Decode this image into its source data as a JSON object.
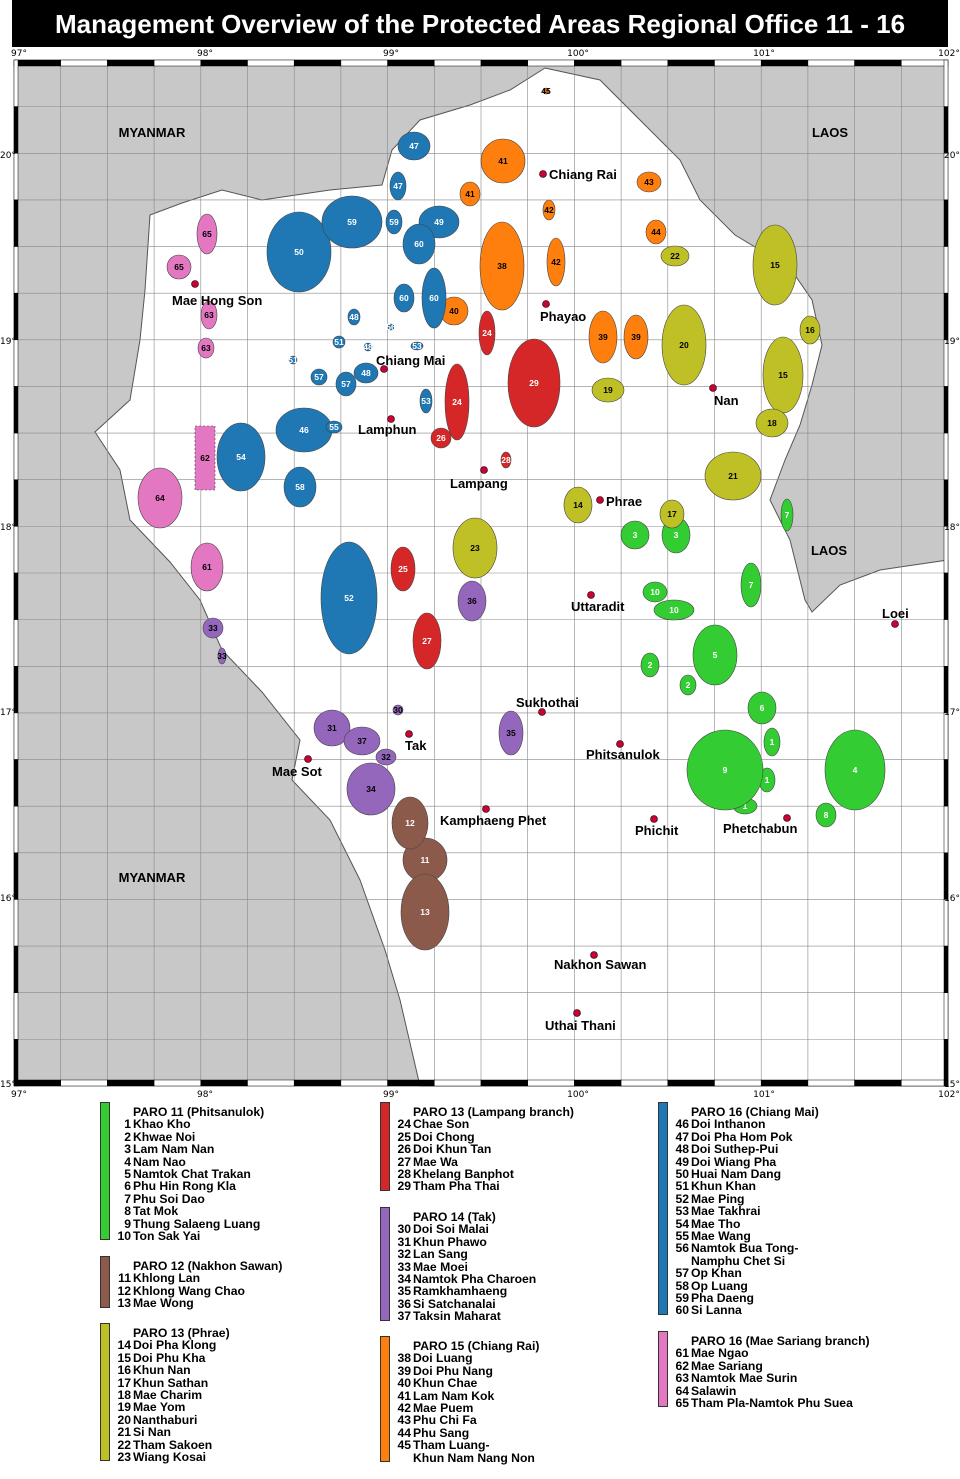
{
  "title": "Management Overview of the Protected Areas Regional Office 11 - 16",
  "map": {
    "lon_labels": [
      "97°",
      "98°",
      "99°",
      "100°",
      "101°",
      "102°"
    ],
    "lat_labels": [
      "20°",
      "19°",
      "18°",
      "17°",
      "16°",
      "15°"
    ],
    "countries": [
      "MYANMAR",
      "LAOS",
      "LAOS",
      "MYANMAR"
    ],
    "cities": [
      "Chiang Rai",
      "Phayao",
      "Mae Hong Son",
      "Chiang Mai",
      "Lamphun",
      "Lampang",
      "Nan",
      "Phrae",
      "Uttaradit",
      "Loei",
      "Sukhothai",
      "Tak",
      "Mae Sot",
      "Phitsanulok",
      "Kamphaeng Phet",
      "Phichit",
      "Phetchabun",
      "Nakhon Sawan",
      "Uthai Thani"
    ],
    "colors": {
      "land_foreign": "#c8c8c8",
      "land_thailand": "#ffffff",
      "city_dot": "#cc0033",
      "grid": "#888888"
    }
  },
  "legend": [
    {
      "name": "PARO 11 (Phitsanulok)",
      "color": "#33cc33",
      "items": [
        [
          "1",
          "Khao Kho"
        ],
        [
          "2",
          "Khwae Noi"
        ],
        [
          "3",
          "Lam Nam Nan"
        ],
        [
          "4",
          "Nam Nao"
        ],
        [
          "5",
          "Namtok Chat Trakan"
        ],
        [
          "6",
          "Phu Hin Rong Kla"
        ],
        [
          "7",
          "Phu Soi Dao"
        ],
        [
          "8",
          "Tat Mok"
        ],
        [
          "9",
          "Thung Salaeng Luang"
        ],
        [
          "10",
          "Ton Sak Yai"
        ]
      ]
    },
    {
      "name": "PARO 12 (Nakhon Sawan)",
      "color": "#8c5a4b",
      "items": [
        [
          "11",
          "Khlong Lan"
        ],
        [
          "12",
          "Khlong Wang Chao"
        ],
        [
          "13",
          "Mae Wong"
        ]
      ]
    },
    {
      "name": "PARO 13 (Phrae)",
      "color": "#bfbf26",
      "items": [
        [
          "14",
          "Doi Pha Klong"
        ],
        [
          "15",
          "Doi Phu Kha"
        ],
        [
          "16",
          "Khun Nan"
        ],
        [
          "17",
          "Khun Sathan"
        ],
        [
          "18",
          "Mae Charim"
        ],
        [
          "19",
          "Mae Yom"
        ],
        [
          "20",
          "Nanthaburi"
        ],
        [
          "21",
          "Si Nan"
        ],
        [
          "22",
          "Tham Sakoen"
        ],
        [
          "23",
          "Wiang Kosai"
        ]
      ]
    },
    {
      "name": "PARO 13 (Lampang branch)",
      "color": "#d62728",
      "items": [
        [
          "24",
          "Chae Son"
        ],
        [
          "25",
          "Doi Chong"
        ],
        [
          "26",
          "Doi Khun Tan"
        ],
        [
          "27",
          "Mae Wa"
        ],
        [
          "28",
          "Khelang Banphot"
        ],
        [
          "29",
          "Tham Pha Thai"
        ]
      ]
    },
    {
      "name": "PARO 14 (Tak)",
      "color": "#9467bd",
      "items": [
        [
          "30",
          "Doi Soi Malai"
        ],
        [
          "31",
          "Khun Phawo"
        ],
        [
          "32",
          "Lan Sang"
        ],
        [
          "33",
          "Mae Moei"
        ],
        [
          "34",
          "Namtok Pha Charoen"
        ],
        [
          "35",
          "Ramkhamhaeng"
        ],
        [
          "36",
          "Si Satchanalai"
        ],
        [
          "37",
          "Taksin Maharat"
        ]
      ]
    },
    {
      "name": "PARO 15 (Chiang Rai)",
      "color": "#ff7f0e",
      "items": [
        [
          "38",
          "Doi Luang"
        ],
        [
          "39",
          "Doi Phu Nang"
        ],
        [
          "40",
          "Khun Chae"
        ],
        [
          "41",
          "Lam Nam Kok"
        ],
        [
          "42",
          "Mae Puem"
        ],
        [
          "43",
          "Phu Chi Fa"
        ],
        [
          "44",
          "Phu Sang"
        ],
        [
          "45",
          "Tham Luang-\nKhun Nam Nang Non"
        ]
      ]
    },
    {
      "name": "PARO 16 (Chiang Mai)",
      "color": "#1f77b4",
      "items": [
        [
          "46",
          "Doi Inthanon"
        ],
        [
          "47",
          "Doi Pha Hom Pok"
        ],
        [
          "48",
          "Doi Suthep-Pui"
        ],
        [
          "49",
          "Doi Wiang Pha"
        ],
        [
          "50",
          "Huai Nam Dang"
        ],
        [
          "51",
          "Khun Khan"
        ],
        [
          "52",
          "Mae Ping"
        ],
        [
          "53",
          "Mae Takhrai"
        ],
        [
          "54",
          "Mae Tho"
        ],
        [
          "55",
          "Mae Wang"
        ],
        [
          "56",
          "Namtok Bua Tong-\nNamphu Chet Si"
        ],
        [
          "57",
          "Op Khan"
        ],
        [
          "58",
          "Op Luang"
        ],
        [
          "59",
          "Pha Daeng"
        ],
        [
          "60",
          "Si Lanna"
        ]
      ]
    },
    {
      "name": "PARO 16 (Mae Sariang branch)",
      "color": "#e377c2",
      "items": [
        [
          "61",
          "Mae Ngao"
        ],
        [
          "62",
          "Mae Sariang"
        ],
        [
          "63",
          "Namtok Mae Surin"
        ],
        [
          "64",
          "Salawin"
        ],
        [
          "65",
          "Tham Pla-Namtok Phu Suea"
        ]
      ]
    }
  ]
}
